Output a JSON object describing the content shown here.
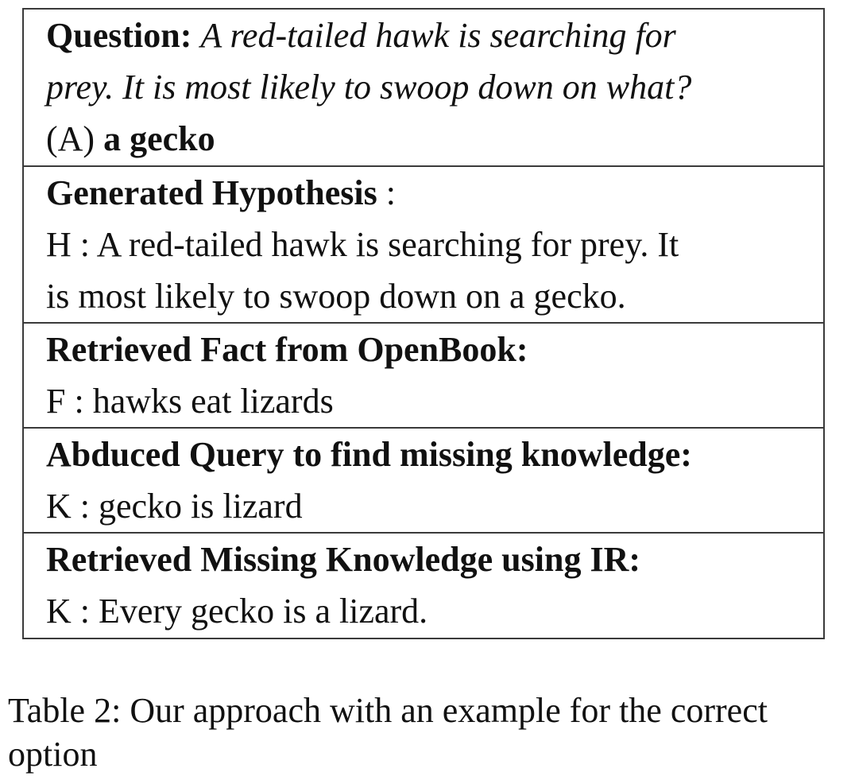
{
  "question": {
    "label": "Question:",
    "text_line1": "A red-tailed hawk is searching for",
    "text_line2": "prey. It is most likely to swoop down on what?",
    "option_prefix": "(A)",
    "option_text": "a gecko"
  },
  "hypothesis": {
    "label": "Generated Hypothesis",
    "label_suffix": " :",
    "line1": "H : A red-tailed hawk is searching for prey. It",
    "line2": "is most likely to swoop down on a gecko."
  },
  "fact": {
    "label": "Retrieved Fact from OpenBook:",
    "line1": "F : hawks eat lizards"
  },
  "query": {
    "label": "Abduced Query to find missing knowledge:",
    "line1": "K : gecko is lizard"
  },
  "knowledge": {
    "label": "Retrieved Missing Knowledge using IR:",
    "line1": "K : Every gecko is a lizard."
  },
  "caption": {
    "line1": "Table 2:  Our approach with an example for the correct",
    "line2": "option"
  }
}
